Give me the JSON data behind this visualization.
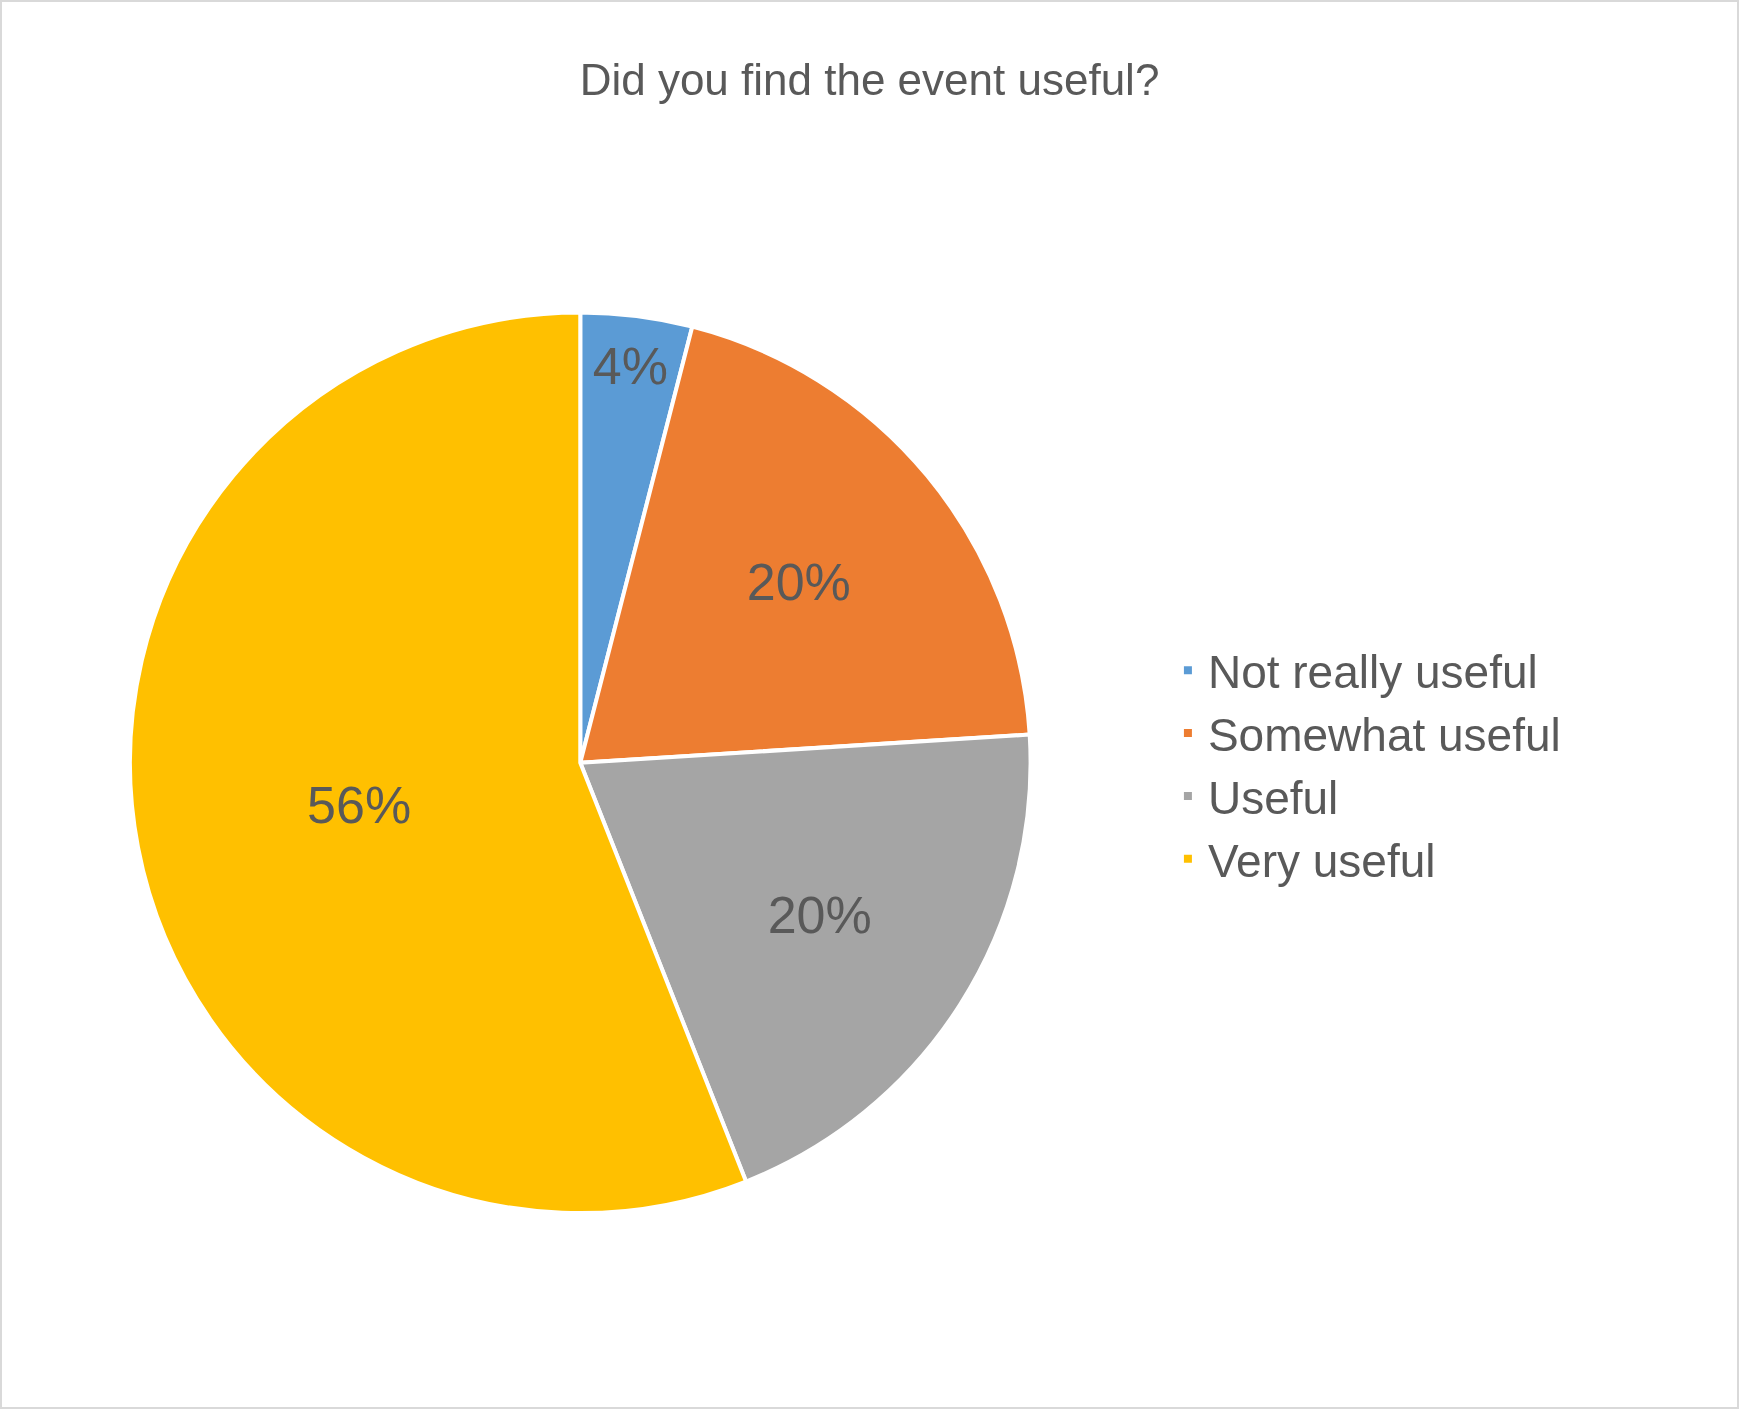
{
  "chart_data": {
    "type": "pie",
    "title": "Did you find the event useful?",
    "categories": [
      "Not really useful",
      "Somewhat useful",
      "Useful",
      "Very useful"
    ],
    "values": [
      4,
      20,
      20,
      56
    ],
    "colors": [
      "#5b9bd5",
      "#ed7d31",
      "#a5a5a5",
      "#ffc000"
    ],
    "value_labels": [
      "4%",
      "20%",
      "20%",
      "56%"
    ],
    "legend": "right"
  }
}
